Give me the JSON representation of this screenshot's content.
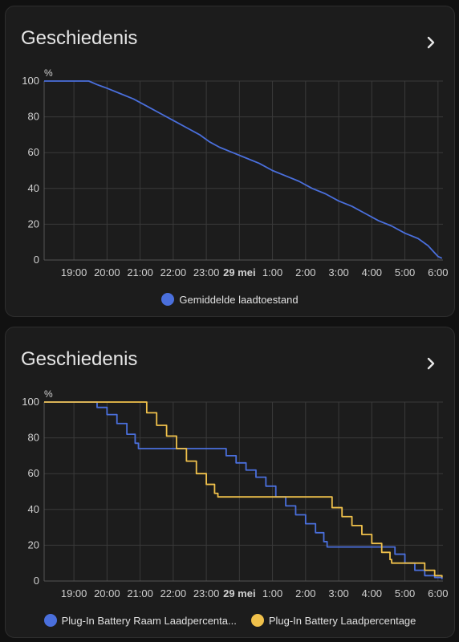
{
  "cards": [
    {
      "title": "Geschiedenis",
      "chevron_icon": "chevron-right-icon"
    },
    {
      "title": "Geschiedenis",
      "chevron_icon": "chevron-right-icon"
    }
  ],
  "chart_data": [
    {
      "type": "line",
      "unit_label": "%",
      "ylim": [
        0,
        100
      ],
      "yticks": [
        0,
        20,
        40,
        60,
        80,
        100
      ],
      "xlim": [
        18.1,
        30.15
      ],
      "xticks": [
        {
          "v": 19,
          "label": "19:00",
          "bold": false
        },
        {
          "v": 20,
          "label": "20:00",
          "bold": false
        },
        {
          "v": 21,
          "label": "21:00",
          "bold": false
        },
        {
          "v": 22,
          "label": "22:00",
          "bold": false
        },
        {
          "v": 23,
          "label": "23:00",
          "bold": false
        },
        {
          "v": 24,
          "label": "29 mei",
          "bold": true
        },
        {
          "v": 25,
          "label": "1:00",
          "bold": false
        },
        {
          "v": 26,
          "label": "2:00",
          "bold": false
        },
        {
          "v": 27,
          "label": "3:00",
          "bold": false
        },
        {
          "v": 28,
          "label": "4:00",
          "bold": false
        },
        {
          "v": 29,
          "label": "5:00",
          "bold": false
        },
        {
          "v": 30,
          "label": "6:00",
          "bold": false
        }
      ],
      "grid": true,
      "legend_position": "bottom",
      "series": [
        {
          "name": "Gemiddelde laadtoestand",
          "color": "#4a6fdc",
          "step": false,
          "points": [
            [
              18.1,
              100
            ],
            [
              19.45,
              100
            ],
            [
              19.7,
              98
            ],
            [
              20,
              96
            ],
            [
              20.4,
              93
            ],
            [
              20.8,
              90
            ],
            [
              21.2,
              86
            ],
            [
              21.6,
              82
            ],
            [
              22,
              78
            ],
            [
              22.4,
              74
            ],
            [
              22.8,
              70
            ],
            [
              23.1,
              66
            ],
            [
              23.4,
              63
            ],
            [
              23.8,
              60
            ],
            [
              24.2,
              57
            ],
            [
              24.6,
              54
            ],
            [
              25,
              50
            ],
            [
              25.4,
              47
            ],
            [
              25.8,
              44
            ],
            [
              26.2,
              40
            ],
            [
              26.6,
              37
            ],
            [
              27,
              33
            ],
            [
              27.4,
              30
            ],
            [
              27.8,
              26
            ],
            [
              28.2,
              22
            ],
            [
              28.6,
              19
            ],
            [
              29,
              15
            ],
            [
              29.4,
              12
            ],
            [
              29.7,
              8
            ],
            [
              29.9,
              4
            ],
            [
              30,
              2
            ],
            [
              30.12,
              1
            ]
          ]
        }
      ]
    },
    {
      "type": "line",
      "unit_label": "%",
      "ylim": [
        0,
        100
      ],
      "yticks": [
        0,
        20,
        40,
        60,
        80,
        100
      ],
      "xlim": [
        18.1,
        30.15
      ],
      "xticks": [
        {
          "v": 19,
          "label": "19:00",
          "bold": false
        },
        {
          "v": 20,
          "label": "20:00",
          "bold": false
        },
        {
          "v": 21,
          "label": "21:00",
          "bold": false
        },
        {
          "v": 22,
          "label": "22:00",
          "bold": false
        },
        {
          "v": 23,
          "label": "23:00",
          "bold": false
        },
        {
          "v": 24,
          "label": "29 mei",
          "bold": true
        },
        {
          "v": 25,
          "label": "1:00",
          "bold": false
        },
        {
          "v": 26,
          "label": "2:00",
          "bold": false
        },
        {
          "v": 27,
          "label": "3:00",
          "bold": false
        },
        {
          "v": 28,
          "label": "4:00",
          "bold": false
        },
        {
          "v": 29,
          "label": "5:00",
          "bold": false
        },
        {
          "v": 30,
          "label": "6:00",
          "bold": false
        }
      ],
      "grid": true,
      "legend_position": "bottom",
      "series": [
        {
          "name": "Plug-In Battery Raam Laadpercentage",
          "legend_display": "Plug-In Battery Raam Laadpercenta...",
          "color": "#4a6fdc",
          "step": true,
          "points": [
            [
              18.1,
              100
            ],
            [
              19.45,
              100
            ],
            [
              19.7,
              97
            ],
            [
              20,
              93
            ],
            [
              20.3,
              88
            ],
            [
              20.6,
              82
            ],
            [
              20.85,
              77
            ],
            [
              20.95,
              74
            ],
            [
              22.4,
              74
            ],
            [
              23.3,
              74
            ],
            [
              23.6,
              70
            ],
            [
              23.9,
              66
            ],
            [
              24.2,
              62
            ],
            [
              24.5,
              58
            ],
            [
              24.8,
              53
            ],
            [
              25.1,
              47
            ],
            [
              25.4,
              42
            ],
            [
              25.7,
              37
            ],
            [
              26,
              32
            ],
            [
              26.3,
              27
            ],
            [
              26.55,
              22
            ],
            [
              26.65,
              19
            ],
            [
              28.5,
              19
            ],
            [
              28.7,
              15
            ],
            [
              29,
              10
            ],
            [
              29.3,
              6
            ],
            [
              29.6,
              3
            ],
            [
              29.9,
              2
            ],
            [
              30.12,
              1
            ]
          ]
        },
        {
          "name": "Plug-In Battery Laadpercentage",
          "legend_display": "Plug-In Battery Laadpercentage",
          "color": "#f0c14b",
          "step": true,
          "points": [
            [
              18.1,
              100
            ],
            [
              20.9,
              100
            ],
            [
              21.2,
              94
            ],
            [
              21.5,
              87
            ],
            [
              21.8,
              81
            ],
            [
              22.1,
              74
            ],
            [
              22.4,
              67
            ],
            [
              22.7,
              60
            ],
            [
              23,
              54
            ],
            [
              23.25,
              49
            ],
            [
              23.35,
              47
            ],
            [
              26.5,
              47
            ],
            [
              26.8,
              41
            ],
            [
              27.1,
              36
            ],
            [
              27.4,
              31
            ],
            [
              27.7,
              26
            ],
            [
              28,
              21
            ],
            [
              28.3,
              16
            ],
            [
              28.55,
              12
            ],
            [
              28.6,
              10
            ],
            [
              29.3,
              10
            ],
            [
              29.6,
              6
            ],
            [
              29.9,
              3
            ],
            [
              30.12,
              2
            ]
          ]
        }
      ]
    }
  ]
}
